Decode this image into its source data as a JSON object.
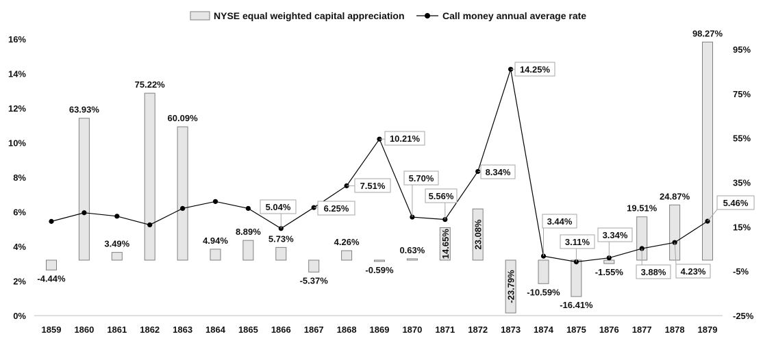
{
  "colors": {
    "bar_fill": "#e6e6e6",
    "bar_stroke": "#7f7f7f",
    "line": "#000000",
    "axis": "#bfbfbf",
    "callout_stroke": "#a6a6a6"
  },
  "legend": {
    "bar_label": "NYSE equal weighted capital appreciation",
    "line_label": "Call money annual average rate"
  },
  "chart_data": {
    "type": "bar",
    "categories": [
      "1859",
      "1860",
      "1861",
      "1862",
      "1863",
      "1864",
      "1865",
      "1866",
      "1867",
      "1868",
      "1869",
      "1870",
      "1871",
      "1872",
      "1873",
      "1874",
      "1875",
      "1876",
      "1877",
      "1878",
      "1879"
    ],
    "series": [
      {
        "name": "NYSE equal weighted capital appreciation",
        "type": "bar",
        "axis": "right",
        "values": [
          -4.44,
          63.93,
          3.49,
          75.22,
          60.09,
          4.94,
          8.89,
          5.73,
          -5.37,
          4.26,
          -0.59,
          0.63,
          14.65,
          23.08,
          -23.79,
          -10.59,
          -16.41,
          -1.55,
          19.51,
          24.87,
          98.27
        ],
        "labels": [
          "-4.44%",
          "63.93%",
          "3.49%",
          "75.22%",
          "60.09%",
          "4.94%",
          "8.89%",
          "5.73%",
          "-5.37%",
          "4.26%",
          "-0.59%",
          "0.63%",
          "14.65%",
          "23.08%",
          "-23.79%",
          "-10.59%",
          "-16.41%",
          "-1.55%",
          "19.51%",
          "24.87%",
          "98.27%"
        ]
      },
      {
        "name": "Call money annual average rate",
        "type": "line",
        "axis": "left",
        "values": [
          5.45,
          5.95,
          5.75,
          5.25,
          6.2,
          6.6,
          6.2,
          5.04,
          6.25,
          7.51,
          10.21,
          5.7,
          5.56,
          8.34,
          14.25,
          3.44,
          3.11,
          3.34,
          3.88,
          4.23,
          5.46
        ],
        "labels": [
          "",
          "",
          "",
          "",
          "",
          "",
          "",
          "5.04%",
          "6.25%",
          "7.51%",
          "10.21%",
          "5.70%",
          "5.56%",
          "8.34%",
          "14.25%",
          "3.44%",
          "3.11%",
          "3.34%",
          "3.88%",
          "4.23%",
          "5.46%"
        ]
      }
    ],
    "y_left": {
      "range": [
        0,
        16
      ],
      "ticks": [
        0,
        2,
        4,
        6,
        8,
        10,
        12,
        14,
        16
      ],
      "tick_labels": [
        "0%",
        "2%",
        "4%",
        "6%",
        "8%",
        "10%",
        "12%",
        "14%",
        "16%"
      ]
    },
    "y_right": {
      "range": [
        -25,
        100
      ],
      "ticks": [
        -25,
        -5,
        15,
        35,
        55,
        75,
        95
      ],
      "tick_labels": [
        "-25%",
        "-5%",
        "15%",
        "35%",
        "55%",
        "75%",
        "95%"
      ]
    },
    "grid": false,
    "legend_position": "top"
  }
}
